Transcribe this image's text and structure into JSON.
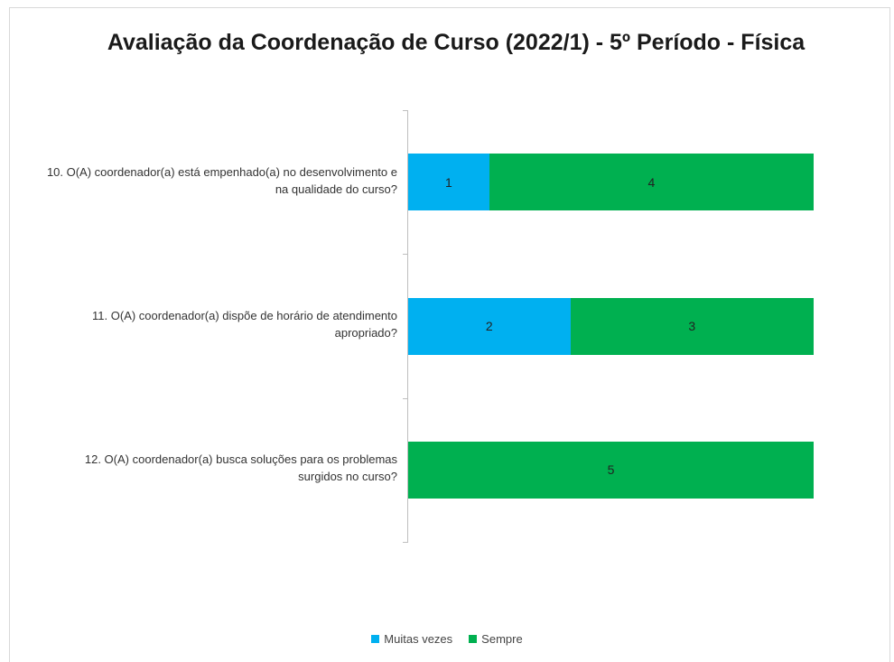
{
  "chart_data": {
    "type": "bar",
    "orientation": "horizontal",
    "stacked": true,
    "title": "Avaliação da Coordenação de Curso (2022/1) - 5º Período - Física",
    "categories": [
      "10. O(A) coordenador(a) está empenhado(a) no desenvolvimento e na qualidade do curso?",
      "11. O(A) coordenador(a) dispõe de horário de atendimento apropriado?",
      "12. O(A) coordenador(a) busca soluções para os problemas surgidos no curso?"
    ],
    "series": [
      {
        "name": "Muitas vezes",
        "color": "#00b0f0",
        "values": [
          1,
          2,
          null
        ]
      },
      {
        "name": "Sempre",
        "color": "#00b050",
        "values": [
          4,
          3,
          5
        ]
      }
    ],
    "legend": "bottom"
  }
}
